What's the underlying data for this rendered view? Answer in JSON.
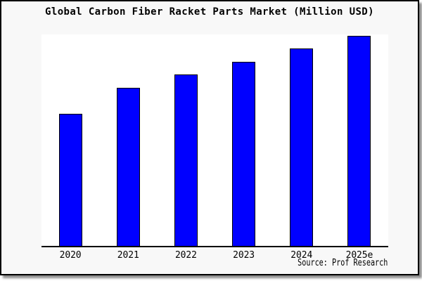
{
  "title": "Global Carbon Fiber Racket Parts Market (Million USD)",
  "source_note": "Source: Prof Research",
  "chart_data": {
    "type": "bar",
    "title": "Global Carbon Fiber Racket Parts Market (Million USD)",
    "categories": [
      "2020",
      "2021",
      "2022",
      "2023",
      "2024",
      "2025e"
    ],
    "values": [
      62.9,
      75.3,
      81.6,
      87.6,
      94.0,
      100.0
    ],
    "values_unit": "relative bar height, % of tallest bar (2025e); y-axis has no tick marks or value labels in image",
    "xlabel": "",
    "ylabel": "",
    "legend": "none",
    "grid": false,
    "bar_color": "#0000ff",
    "bar_border_color": "#000000",
    "plot_background": "#ffffff",
    "canvas_background": "#f8f8f8",
    "source_note": "Source: Prof Research"
  },
  "colors": {
    "frame_border": "#000000",
    "axis": "#000000",
    "text": "#000000",
    "shadow": "#999999"
  }
}
